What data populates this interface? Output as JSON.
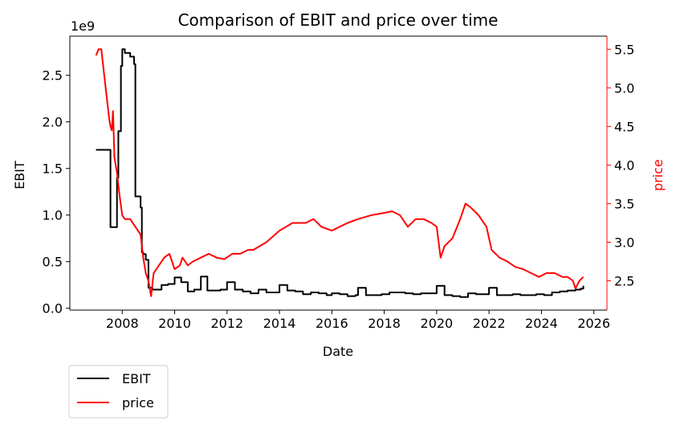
{
  "chart_data": {
    "type": "line",
    "title": "Comparison of EBIT and price over time",
    "xlabel": "Date",
    "xlim": [
      2006.0,
      2026.5
    ],
    "xticks": [
      2008,
      2010,
      2012,
      2014,
      2016,
      2018,
      2020,
      2022,
      2024,
      2026
    ],
    "y_left": {
      "label": "EBIT",
      "offset_label": "1e9",
      "lim": [
        -0.02,
        2.92
      ],
      "ticks": [
        0.0,
        0.5,
        1.0,
        1.5,
        2.0,
        2.5
      ],
      "tick_labels": [
        "0.0",
        "0.5",
        "1.0",
        "1.5",
        "2.0",
        "2.5"
      ],
      "color": "#000000"
    },
    "y_right": {
      "label": "price",
      "lim": [
        2.12,
        5.67
      ],
      "ticks": [
        2.5,
        3.0,
        3.5,
        4.0,
        4.5,
        5.0,
        5.5
      ],
      "tick_labels": [
        "2.5",
        "3.0",
        "3.5",
        "4.0",
        "4.5",
        "5.0",
        "5.5"
      ],
      "color": "#ff0000"
    },
    "legend": {
      "position": "below-left",
      "entries": [
        "EBIT",
        "price"
      ]
    },
    "grid": false,
    "series": [
      {
        "name": "EBIT",
        "axis": "left",
        "color": "#000000",
        "step": true,
        "x": [
          2007.0,
          2007.55,
          2007.6,
          2007.8,
          2007.85,
          2007.95,
          2008.0,
          2008.1,
          2008.3,
          2008.45,
          2008.5,
          2008.7,
          2008.75,
          2008.8,
          2008.9,
          2009.0,
          2009.15,
          2009.3,
          2009.5,
          2009.75,
          2010.0,
          2010.25,
          2010.5,
          2010.75,
          2011.0,
          2011.25,
          2011.5,
          2011.75,
          2012.0,
          2012.3,
          2012.6,
          2012.9,
          2013.2,
          2013.5,
          2013.8,
          2014.0,
          2014.3,
          2014.6,
          2014.9,
          2015.2,
          2015.5,
          2015.8,
          2016.0,
          2016.3,
          2016.6,
          2016.9,
          2017.0,
          2017.3,
          2017.6,
          2017.9,
          2018.2,
          2018.5,
          2018.8,
          2019.1,
          2019.4,
          2019.7,
          2020.0,
          2020.3,
          2020.6,
          2020.9,
          2021.2,
          2021.5,
          2021.8,
          2022.0,
          2022.3,
          2022.6,
          2022.9,
          2023.2,
          2023.5,
          2023.8,
          2024.1,
          2024.4,
          2024.7,
          2025.0,
          2025.3,
          2025.5,
          2025.6
        ],
        "y": [
          1.7,
          0.87,
          0.87,
          1.4,
          1.9,
          2.6,
          2.78,
          2.74,
          2.7,
          2.62,
          1.2,
          1.08,
          0.6,
          0.58,
          0.52,
          0.22,
          0.2,
          0.2,
          0.25,
          0.26,
          0.33,
          0.28,
          0.18,
          0.2,
          0.34,
          0.19,
          0.19,
          0.2,
          0.28,
          0.2,
          0.18,
          0.16,
          0.2,
          0.17,
          0.17,
          0.25,
          0.19,
          0.18,
          0.15,
          0.17,
          0.16,
          0.14,
          0.16,
          0.15,
          0.13,
          0.14,
          0.22,
          0.14,
          0.14,
          0.15,
          0.17,
          0.17,
          0.16,
          0.15,
          0.16,
          0.16,
          0.24,
          0.14,
          0.13,
          0.12,
          0.16,
          0.15,
          0.15,
          0.22,
          0.14,
          0.14,
          0.15,
          0.14,
          0.14,
          0.15,
          0.14,
          0.17,
          0.18,
          0.19,
          0.2,
          0.21,
          0.24
        ]
      },
      {
        "name": "price",
        "axis": "right",
        "color": "#ff0000",
        "step": false,
        "x": [
          2007.0,
          2007.1,
          2007.2,
          2007.3,
          2007.4,
          2007.5,
          2007.55,
          2007.6,
          2007.65,
          2007.7,
          2007.8,
          2007.9,
          2008.0,
          2008.1,
          2008.3,
          2008.5,
          2008.6,
          2008.7,
          2008.8,
          2008.9,
          2009.0,
          2009.1,
          2009.2,
          2009.4,
          2009.6,
          2009.8,
          2010.0,
          2010.2,
          2010.3,
          2010.5,
          2010.7,
          2011.0,
          2011.3,
          2011.6,
          2011.9,
          2012.2,
          2012.5,
          2012.8,
          2013.0,
          2013.5,
          2014.0,
          2014.5,
          2015.0,
          2015.3,
          2015.6,
          2016.0,
          2016.3,
          2016.6,
          2017.0,
          2017.5,
          2018.0,
          2018.3,
          2018.6,
          2018.9,
          2019.2,
          2019.5,
          2019.8,
          2020.0,
          2020.15,
          2020.3,
          2020.6,
          2020.9,
          2021.1,
          2021.3,
          2021.6,
          2021.9,
          2022.1,
          2022.4,
          2022.7,
          2023.0,
          2023.3,
          2023.6,
          2023.9,
          2024.2,
          2024.5,
          2024.8,
          2025.0,
          2025.2,
          2025.3,
          2025.45,
          2025.6
        ],
        "y": [
          5.42,
          5.5,
          5.5,
          5.2,
          4.9,
          4.6,
          4.5,
          4.45,
          4.7,
          4.1,
          3.9,
          3.6,
          3.35,
          3.3,
          3.3,
          3.2,
          3.15,
          3.1,
          2.8,
          2.6,
          2.5,
          2.3,
          2.6,
          2.7,
          2.8,
          2.85,
          2.65,
          2.7,
          2.8,
          2.7,
          2.75,
          2.8,
          2.85,
          2.8,
          2.78,
          2.85,
          2.85,
          2.9,
          2.9,
          3.0,
          3.15,
          3.25,
          3.25,
          3.3,
          3.2,
          3.15,
          3.2,
          3.25,
          3.3,
          3.35,
          3.38,
          3.4,
          3.35,
          3.2,
          3.3,
          3.3,
          3.25,
          3.2,
          2.8,
          2.95,
          3.05,
          3.3,
          3.5,
          3.45,
          3.35,
          3.2,
          2.9,
          2.8,
          2.75,
          2.68,
          2.65,
          2.6,
          2.55,
          2.6,
          2.6,
          2.55,
          2.55,
          2.5,
          2.4,
          2.5,
          2.55
        ]
      }
    ]
  }
}
